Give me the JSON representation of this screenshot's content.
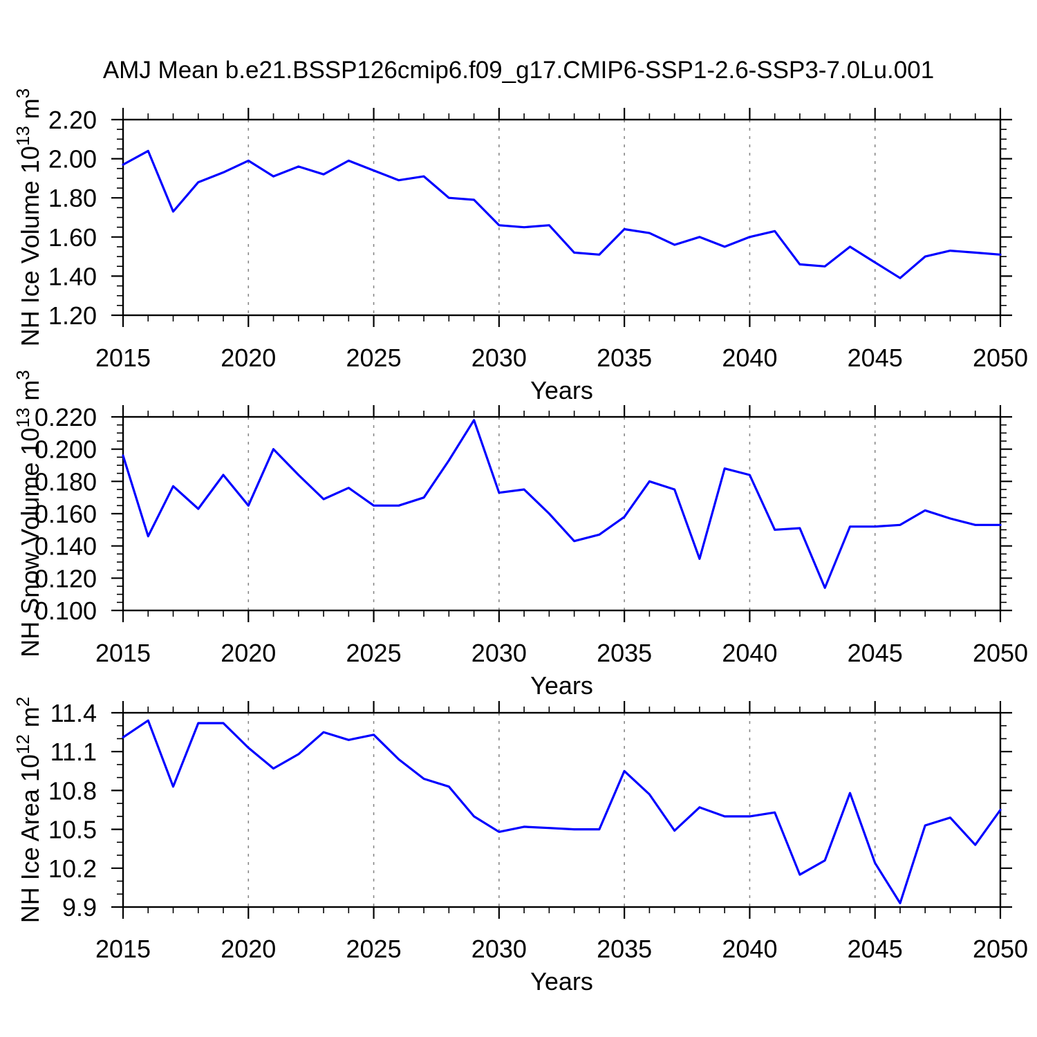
{
  "title": "AMJ Mean b.e21.BSSP126cmip6.f09_g17.CMIP6-SSP1-2.6-SSP3-7.0Lu.001",
  "colors": {
    "line": "#0000ff",
    "grid": "#888888",
    "axis": "#000000",
    "background": "#ffffff"
  },
  "chart_data": [
    {
      "type": "line",
      "name": "nh-ice-volume",
      "xlabel": "Years",
      "ylabel_parts": [
        {
          "t": "NH Ice Volume 10"
        },
        {
          "t": "13",
          "sup": true
        },
        {
          "t": " m"
        },
        {
          "t": "3",
          "sup": true
        }
      ],
      "xlim": [
        2015,
        2050
      ],
      "ylim": [
        1.2,
        2.2
      ],
      "grid": "vertical-dashed",
      "legend": "none",
      "gridlines_x": [
        2020,
        2025,
        2030,
        2035,
        2040,
        2045
      ],
      "xticks": {
        "major": [
          2015,
          2020,
          2025,
          2030,
          2035,
          2040,
          2045,
          2050
        ],
        "minor_step": 1
      },
      "yticks": {
        "values": [
          1.2,
          1.4,
          1.6,
          1.8,
          2.0,
          2.2
        ],
        "labels": [
          "1.20",
          "1.40",
          "1.60",
          "1.80",
          "2.00",
          "2.20"
        ],
        "minor_step": 0.05
      },
      "x": [
        2015,
        2016,
        2017,
        2018,
        2019,
        2020,
        2021,
        2022,
        2023,
        2024,
        2025,
        2026,
        2027,
        2028,
        2029,
        2030,
        2031,
        2032,
        2033,
        2034,
        2035,
        2036,
        2037,
        2038,
        2039,
        2040,
        2041,
        2042,
        2043,
        2044,
        2045,
        2046,
        2047,
        2048,
        2049,
        2050
      ],
      "values": [
        1.97,
        2.04,
        1.73,
        1.88,
        1.93,
        1.99,
        1.91,
        1.96,
        1.92,
        1.99,
        1.94,
        1.89,
        1.91,
        1.8,
        1.79,
        1.66,
        1.65,
        1.66,
        1.52,
        1.51,
        1.64,
        1.62,
        1.56,
        1.6,
        1.55,
        1.6,
        1.63,
        1.46,
        1.45,
        1.55,
        1.47,
        1.39,
        1.5,
        1.53,
        1.52,
        1.51
      ]
    },
    {
      "type": "line",
      "name": "nh-snow-volume",
      "xlabel": "Years",
      "ylabel_parts": [
        {
          "t": "NH Snow Volume 10"
        },
        {
          "t": "13",
          "sup": true
        },
        {
          "t": " m"
        },
        {
          "t": "3",
          "sup": true
        }
      ],
      "xlim": [
        2015,
        2050
      ],
      "ylim": [
        0.1,
        0.22
      ],
      "grid": "vertical-dashed",
      "legend": "none",
      "gridlines_x": [
        2020,
        2025,
        2030,
        2035,
        2040,
        2045
      ],
      "xticks": {
        "major": [
          2015,
          2020,
          2025,
          2030,
          2035,
          2040,
          2045,
          2050
        ],
        "minor_step": 1
      },
      "yticks": {
        "values": [
          0.1,
          0.12,
          0.14,
          0.16,
          0.18,
          0.2,
          0.22
        ],
        "labels": [
          "0.100",
          "0.120",
          "0.140",
          "0.160",
          "0.180",
          "0.200",
          "0.220"
        ],
        "minor_step": 0.005
      },
      "x": [
        2015,
        2016,
        2017,
        2018,
        2019,
        2020,
        2021,
        2022,
        2023,
        2024,
        2025,
        2026,
        2027,
        2028,
        2029,
        2030,
        2031,
        2032,
        2033,
        2034,
        2035,
        2036,
        2037,
        2038,
        2039,
        2040,
        2041,
        2042,
        2043,
        2044,
        2045,
        2046,
        2047,
        2048,
        2049,
        2050
      ],
      "values": [
        0.196,
        0.146,
        0.177,
        0.163,
        0.184,
        0.165,
        0.2,
        0.184,
        0.169,
        0.176,
        0.165,
        0.165,
        0.17,
        0.193,
        0.218,
        0.173,
        0.175,
        0.16,
        0.143,
        0.147,
        0.158,
        0.18,
        0.175,
        0.132,
        0.188,
        0.184,
        0.15,
        0.151,
        0.114,
        0.152,
        0.152,
        0.153,
        0.162,
        0.157,
        0.153,
        0.153
      ]
    },
    {
      "type": "line",
      "name": "nh-ice-area",
      "xlabel": "Years",
      "ylabel_parts": [
        {
          "t": "NH Ice Area 10"
        },
        {
          "t": "12",
          "sup": true
        },
        {
          "t": " m"
        },
        {
          "t": "2",
          "sup": true
        }
      ],
      "xlim": [
        2015,
        2050
      ],
      "ylim": [
        9.9,
        11.4
      ],
      "grid": "vertical-dashed",
      "legend": "none",
      "gridlines_x": [
        2020,
        2025,
        2030,
        2035,
        2040,
        2045
      ],
      "xticks": {
        "major": [
          2015,
          2020,
          2025,
          2030,
          2035,
          2040,
          2045,
          2050
        ],
        "minor_step": 1
      },
      "yticks": {
        "values": [
          9.9,
          10.2,
          10.5,
          10.8,
          11.1,
          11.4
        ],
        "labels": [
          "9.9",
          "10.2",
          "10.5",
          "10.8",
          "11.1",
          "11.4"
        ],
        "minor_step": 0.1
      },
      "x": [
        2015,
        2016,
        2017,
        2018,
        2019,
        2020,
        2021,
        2022,
        2023,
        2024,
        2025,
        2026,
        2027,
        2028,
        2029,
        2030,
        2031,
        2032,
        2033,
        2034,
        2035,
        2036,
        2037,
        2038,
        2039,
        2040,
        2041,
        2042,
        2043,
        2044,
        2045,
        2046,
        2047,
        2048,
        2049,
        2050
      ],
      "values": [
        11.21,
        11.34,
        10.83,
        11.32,
        11.32,
        11.13,
        10.97,
        11.08,
        11.25,
        11.19,
        11.23,
        11.04,
        10.89,
        10.83,
        10.6,
        10.48,
        10.52,
        10.51,
        10.5,
        10.5,
        10.95,
        10.77,
        10.49,
        10.67,
        10.6,
        10.6,
        10.63,
        10.15,
        10.26,
        10.78,
        10.24,
        9.93,
        10.53,
        10.59,
        10.38,
        10.65
      ]
    }
  ]
}
